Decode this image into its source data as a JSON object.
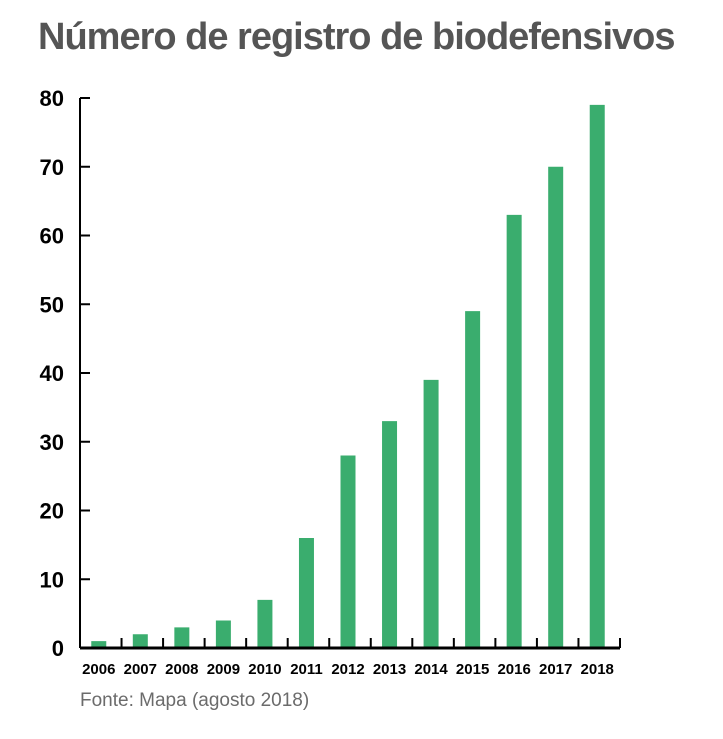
{
  "title": "Número de registro de biodefensivos",
  "source": "Fonte: Mapa (agosto 2018)",
  "colors": {
    "bar": "#3aad6e",
    "axis": "#000000",
    "title": "#555555",
    "source": "#6b6b6b"
  },
  "chart_data": {
    "type": "bar",
    "title": "Número de registro de biodefensivos",
    "xlabel": "",
    "ylabel": "",
    "categories": [
      "2006",
      "2007",
      "2008",
      "2009",
      "2010",
      "2011",
      "2012",
      "2013",
      "2014",
      "2015",
      "2016",
      "2017",
      "2018"
    ],
    "values": [
      1,
      2,
      3,
      4,
      7,
      16,
      28,
      33,
      39,
      49,
      63,
      70,
      79
    ],
    "ylim": [
      0,
      80
    ],
    "yticks": [
      0,
      10,
      20,
      30,
      40,
      50,
      60,
      70,
      80
    ],
    "grid": false,
    "legend": "none"
  }
}
